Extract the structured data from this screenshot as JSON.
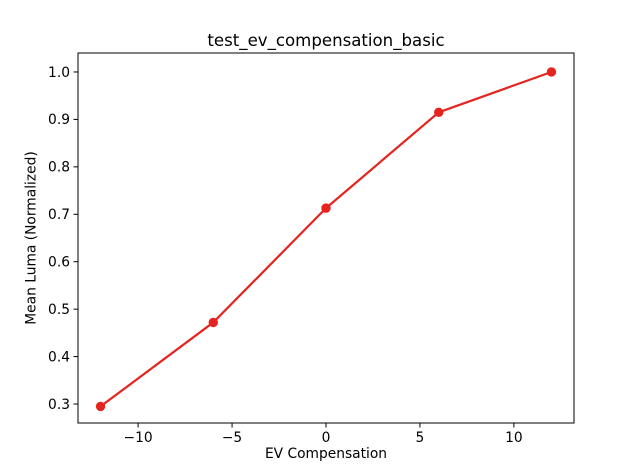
{
  "chart_data": {
    "type": "line",
    "title": "test_ev_compensation_basic",
    "xlabel": "EV Compensation",
    "ylabel": "Mean Luma (Normalized)",
    "x": [
      -12,
      -6,
      0,
      6,
      12
    ],
    "y": [
      0.295,
      0.472,
      0.713,
      0.915,
      1.0
    ],
    "xlim": [
      -13.2,
      13.2
    ],
    "ylim": [
      0.26,
      1.04
    ],
    "xticks": [
      -10,
      -5,
      0,
      5,
      10
    ],
    "xtick_labels": [
      "−10",
      "−5",
      "0",
      "5",
      "10"
    ],
    "yticks": [
      0.3,
      0.4,
      0.5,
      0.6,
      0.7,
      0.8,
      0.9,
      1.0
    ],
    "ytick_labels": [
      "0.3",
      "0.4",
      "0.5",
      "0.6",
      "0.7",
      "0.8",
      "0.9",
      "1.0"
    ],
    "grid": false,
    "legend": "none",
    "line_color": "#e6231e",
    "marker": "circle",
    "marker_color": "#e6231e",
    "background_color": "#ffffff",
    "axis_color": "#000000"
  }
}
